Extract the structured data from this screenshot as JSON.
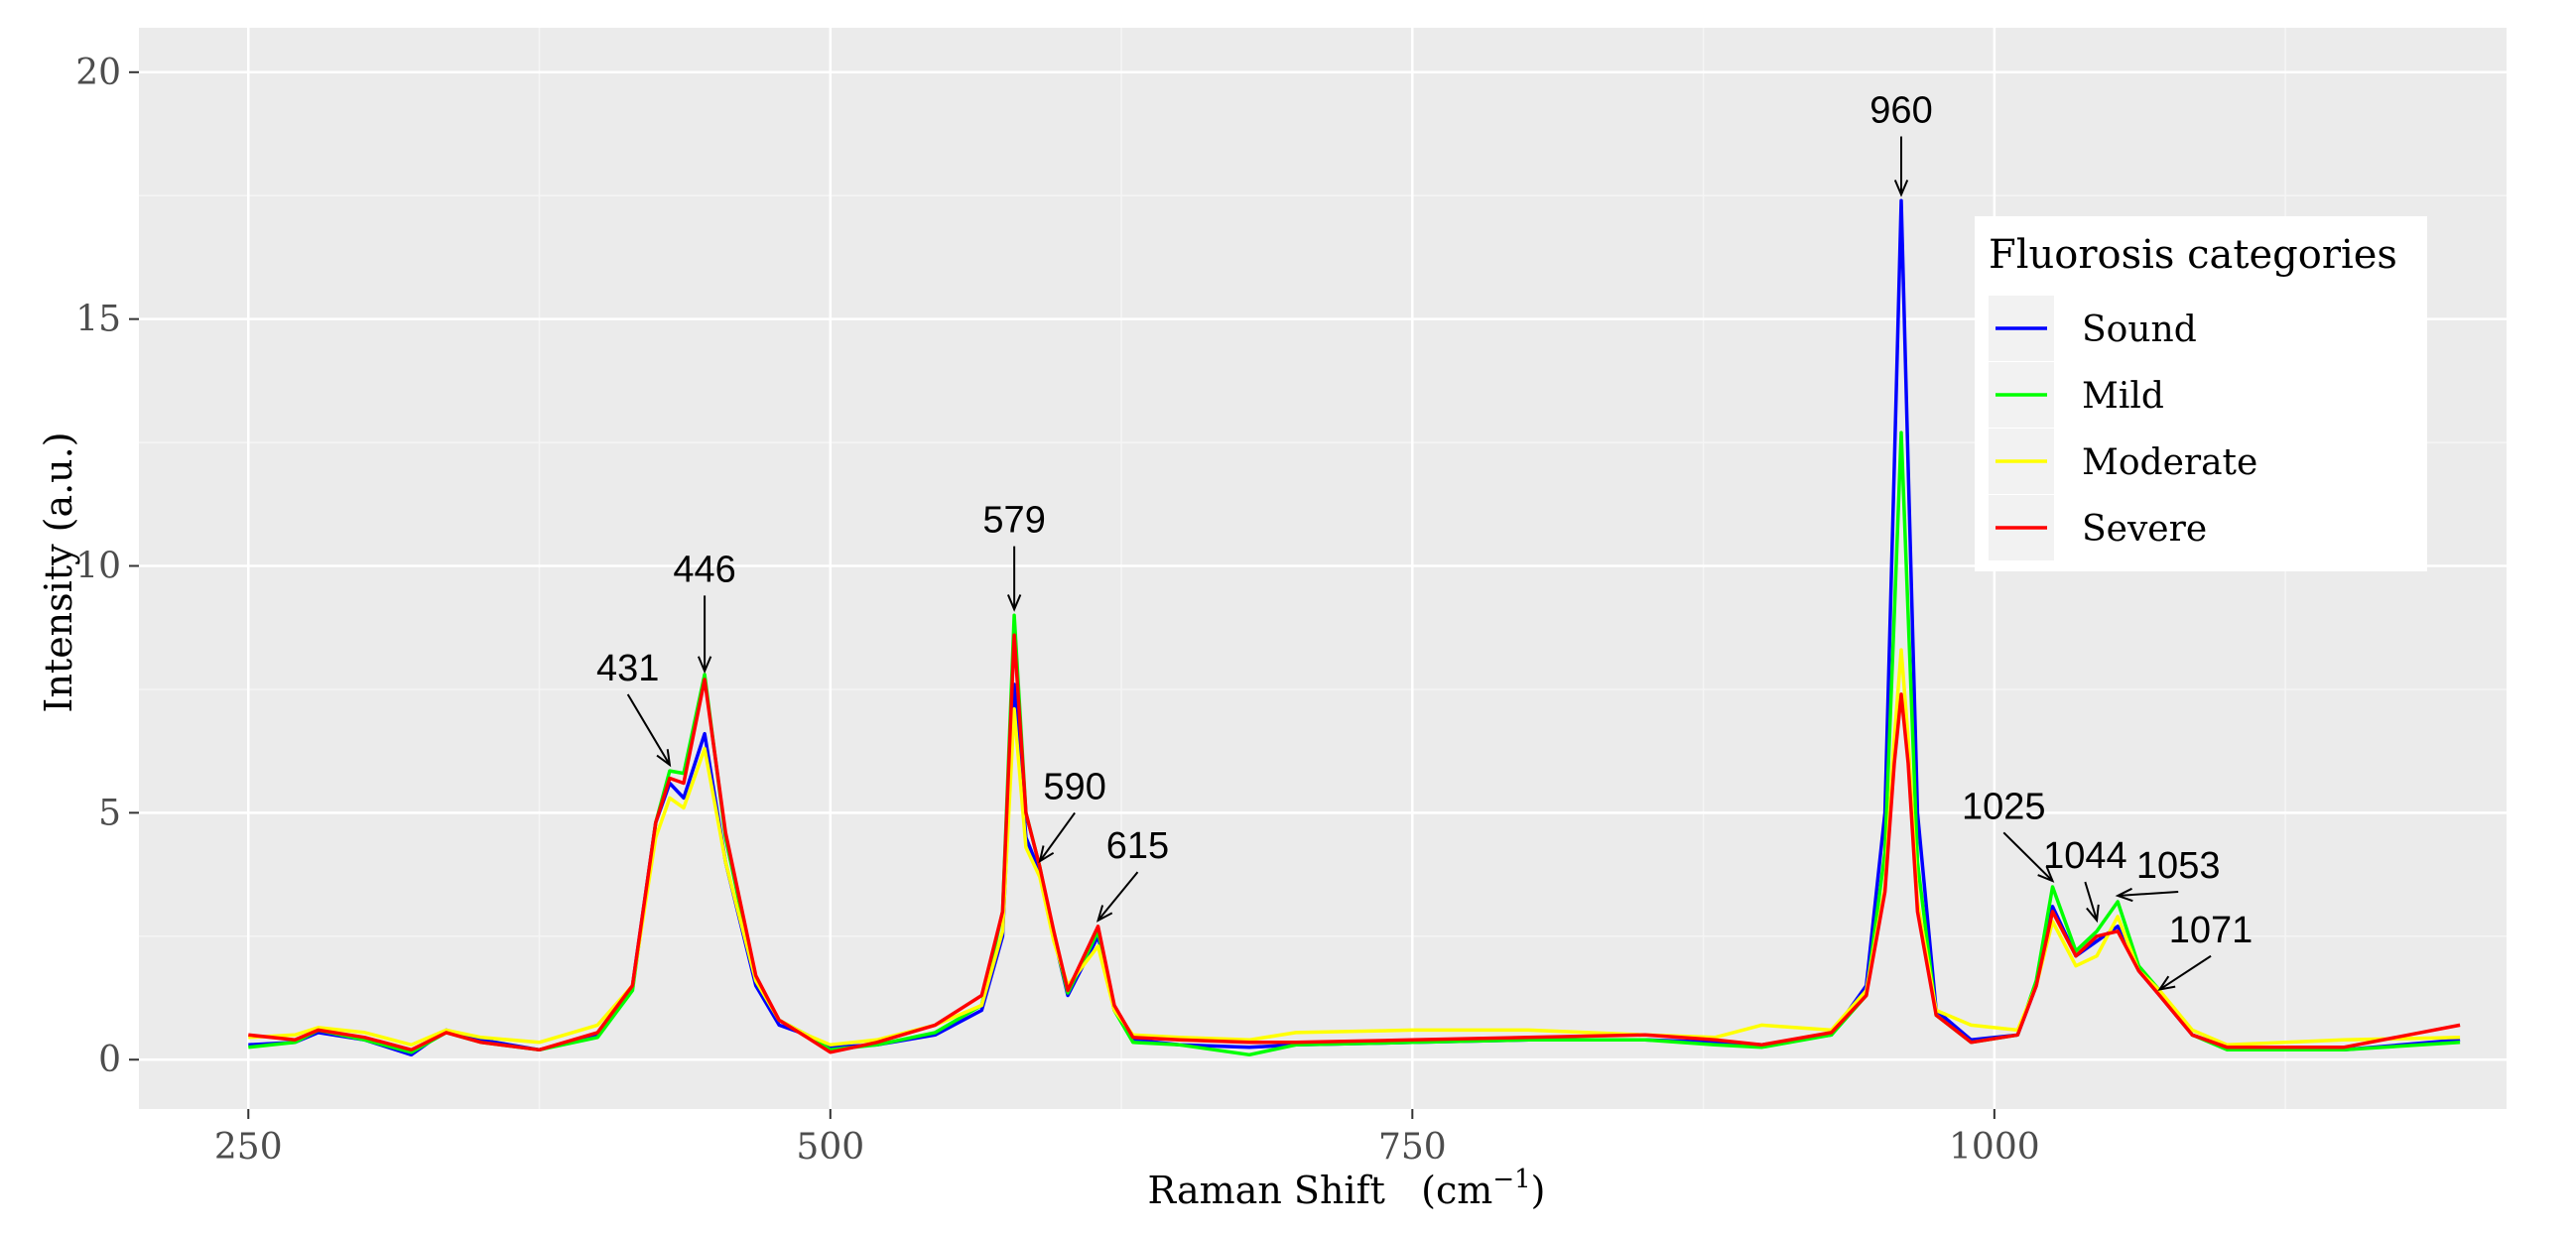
{
  "chart_data": {
    "type": "line",
    "title": "",
    "xlabel": "Raman Shift",
    "xlabel_unit": "cm",
    "xlabel_unit_exp": "−1",
    "ylabel": "Intensity (a.u.)",
    "xlim": [
      203,
      1220
    ],
    "ylim": [
      -1,
      20.9
    ],
    "x_ticks": [
      250,
      500,
      750,
      1000
    ],
    "y_ticks": [
      0,
      5,
      10,
      15,
      20
    ],
    "grid": true,
    "legend": {
      "title": "Fluorosis categories",
      "position": "right"
    },
    "series": [
      {
        "name": "Sound",
        "color": "#0000ff",
        "points": [
          [
            250,
            0.3
          ],
          [
            270,
            0.35
          ],
          [
            280,
            0.55
          ],
          [
            300,
            0.4
          ],
          [
            320,
            0.1
          ],
          [
            335,
            0.6
          ],
          [
            350,
            0.4
          ],
          [
            375,
            0.2
          ],
          [
            400,
            0.5
          ],
          [
            415,
            1.5
          ],
          [
            425,
            4.8
          ],
          [
            431,
            5.6
          ],
          [
            437,
            5.3
          ],
          [
            446,
            6.6
          ],
          [
            455,
            4.0
          ],
          [
            468,
            1.5
          ],
          [
            478,
            0.7
          ],
          [
            490,
            0.5
          ],
          [
            500,
            0.25
          ],
          [
            520,
            0.3
          ],
          [
            545,
            0.5
          ],
          [
            565,
            1.0
          ],
          [
            574,
            2.5
          ],
          [
            579,
            7.6
          ],
          [
            584,
            4.5
          ],
          [
            590,
            3.8
          ],
          [
            596,
            2.5
          ],
          [
            602,
            1.3
          ],
          [
            615,
            2.5
          ],
          [
            622,
            1.0
          ],
          [
            630,
            0.4
          ],
          [
            650,
            0.3
          ],
          [
            680,
            0.25
          ],
          [
            700,
            0.3
          ],
          [
            750,
            0.35
          ],
          [
            800,
            0.4
          ],
          [
            850,
            0.4
          ],
          [
            880,
            0.35
          ],
          [
            900,
            0.3
          ],
          [
            930,
            0.5
          ],
          [
            945,
            1.5
          ],
          [
            953,
            5.0
          ],
          [
            957,
            12.0
          ],
          [
            960,
            17.4
          ],
          [
            963,
            12.0
          ],
          [
            967,
            5.0
          ],
          [
            975,
            1.0
          ],
          [
            990,
            0.4
          ],
          [
            1010,
            0.5
          ],
          [
            1018,
            1.5
          ],
          [
            1025,
            3.1
          ],
          [
            1035,
            2.1
          ],
          [
            1044,
            2.4
          ],
          [
            1053,
            2.7
          ],
          [
            1062,
            1.8
          ],
          [
            1071,
            1.3
          ],
          [
            1085,
            0.5
          ],
          [
            1100,
            0.25
          ],
          [
            1150,
            0.2
          ],
          [
            1200,
            0.4
          ]
        ]
      },
      {
        "name": "Mild",
        "color": "#00ff00",
        "points": [
          [
            250,
            0.25
          ],
          [
            270,
            0.35
          ],
          [
            280,
            0.6
          ],
          [
            300,
            0.4
          ],
          [
            320,
            0.15
          ],
          [
            335,
            0.55
          ],
          [
            350,
            0.35
          ],
          [
            375,
            0.2
          ],
          [
            400,
            0.45
          ],
          [
            415,
            1.4
          ],
          [
            425,
            4.8
          ],
          [
            431,
            5.85
          ],
          [
            437,
            5.8
          ],
          [
            446,
            7.8
          ],
          [
            455,
            4.5
          ],
          [
            468,
            1.6
          ],
          [
            478,
            0.8
          ],
          [
            490,
            0.5
          ],
          [
            500,
            0.2
          ],
          [
            520,
            0.3
          ],
          [
            545,
            0.55
          ],
          [
            565,
            1.1
          ],
          [
            574,
            3.0
          ],
          [
            579,
            9.0
          ],
          [
            584,
            5.0
          ],
          [
            590,
            3.9
          ],
          [
            596,
            2.5
          ],
          [
            602,
            1.35
          ],
          [
            615,
            2.6
          ],
          [
            622,
            1.0
          ],
          [
            630,
            0.35
          ],
          [
            650,
            0.3
          ],
          [
            680,
            0.1
          ],
          [
            700,
            0.3
          ],
          [
            750,
            0.35
          ],
          [
            800,
            0.4
          ],
          [
            850,
            0.4
          ],
          [
            880,
            0.3
          ],
          [
            900,
            0.25
          ],
          [
            930,
            0.5
          ],
          [
            945,
            1.3
          ],
          [
            953,
            4.2
          ],
          [
            957,
            9.0
          ],
          [
            960,
            12.7
          ],
          [
            963,
            9.0
          ],
          [
            967,
            4.0
          ],
          [
            975,
            0.9
          ],
          [
            990,
            0.35
          ],
          [
            1010,
            0.5
          ],
          [
            1018,
            1.6
          ],
          [
            1025,
            3.5
          ],
          [
            1035,
            2.2
          ],
          [
            1044,
            2.6
          ],
          [
            1053,
            3.2
          ],
          [
            1062,
            1.9
          ],
          [
            1071,
            1.4
          ],
          [
            1085,
            0.5
          ],
          [
            1100,
            0.2
          ],
          [
            1150,
            0.2
          ],
          [
            1200,
            0.35
          ]
        ]
      },
      {
        "name": "Moderate",
        "color": "#ffff00",
        "points": [
          [
            250,
            0.45
          ],
          [
            270,
            0.5
          ],
          [
            280,
            0.65
          ],
          [
            300,
            0.55
          ],
          [
            320,
            0.3
          ],
          [
            335,
            0.6
          ],
          [
            350,
            0.45
          ],
          [
            375,
            0.35
          ],
          [
            400,
            0.7
          ],
          [
            415,
            1.5
          ],
          [
            425,
            4.5
          ],
          [
            431,
            5.3
          ],
          [
            437,
            5.1
          ],
          [
            446,
            6.3
          ],
          [
            455,
            4.0
          ],
          [
            468,
            1.6
          ],
          [
            478,
            0.8
          ],
          [
            490,
            0.5
          ],
          [
            500,
            0.3
          ],
          [
            520,
            0.4
          ],
          [
            545,
            0.7
          ],
          [
            565,
            1.1
          ],
          [
            574,
            2.6
          ],
          [
            579,
            7.1
          ],
          [
            584,
            4.3
          ],
          [
            590,
            3.7
          ],
          [
            596,
            2.4
          ],
          [
            602,
            1.5
          ],
          [
            615,
            2.3
          ],
          [
            622,
            1.0
          ],
          [
            630,
            0.5
          ],
          [
            650,
            0.45
          ],
          [
            680,
            0.4
          ],
          [
            700,
            0.55
          ],
          [
            750,
            0.6
          ],
          [
            800,
            0.6
          ],
          [
            850,
            0.5
          ],
          [
            880,
            0.45
          ],
          [
            900,
            0.7
          ],
          [
            930,
            0.6
          ],
          [
            945,
            1.4
          ],
          [
            953,
            3.5
          ],
          [
            957,
            6.5
          ],
          [
            960,
            8.3
          ],
          [
            963,
            6.5
          ],
          [
            967,
            3.2
          ],
          [
            975,
            1.0
          ],
          [
            990,
            0.7
          ],
          [
            1010,
            0.6
          ],
          [
            1018,
            1.5
          ],
          [
            1025,
            2.8
          ],
          [
            1035,
            1.9
          ],
          [
            1044,
            2.1
          ],
          [
            1053,
            2.9
          ],
          [
            1062,
            1.8
          ],
          [
            1071,
            1.4
          ],
          [
            1085,
            0.6
          ],
          [
            1100,
            0.3
          ],
          [
            1150,
            0.4
          ],
          [
            1200,
            0.45
          ]
        ]
      },
      {
        "name": "Severe",
        "color": "#ff0000",
        "points": [
          [
            250,
            0.5
          ],
          [
            270,
            0.4
          ],
          [
            280,
            0.6
          ],
          [
            300,
            0.45
          ],
          [
            320,
            0.2
          ],
          [
            335,
            0.55
          ],
          [
            350,
            0.35
          ],
          [
            375,
            0.2
          ],
          [
            400,
            0.55
          ],
          [
            415,
            1.5
          ],
          [
            425,
            4.8
          ],
          [
            431,
            5.7
          ],
          [
            437,
            5.6
          ],
          [
            446,
            7.7
          ],
          [
            455,
            4.6
          ],
          [
            468,
            1.7
          ],
          [
            478,
            0.8
          ],
          [
            490,
            0.45
          ],
          [
            500,
            0.15
          ],
          [
            520,
            0.35
          ],
          [
            545,
            0.7
          ],
          [
            565,
            1.3
          ],
          [
            574,
            3.0
          ],
          [
            579,
            8.6
          ],
          [
            584,
            5.0
          ],
          [
            590,
            3.9
          ],
          [
            596,
            2.6
          ],
          [
            602,
            1.4
          ],
          [
            615,
            2.7
          ],
          [
            622,
            1.1
          ],
          [
            630,
            0.45
          ],
          [
            650,
            0.4
          ],
          [
            680,
            0.35
          ],
          [
            700,
            0.35
          ],
          [
            750,
            0.4
          ],
          [
            800,
            0.45
          ],
          [
            850,
            0.5
          ],
          [
            880,
            0.4
          ],
          [
            900,
            0.3
          ],
          [
            930,
            0.55
          ],
          [
            945,
            1.3
          ],
          [
            953,
            3.4
          ],
          [
            957,
            6.0
          ],
          [
            960,
            7.4
          ],
          [
            963,
            6.0
          ],
          [
            967,
            3.0
          ],
          [
            975,
            0.9
          ],
          [
            990,
            0.35
          ],
          [
            1010,
            0.5
          ],
          [
            1018,
            1.5
          ],
          [
            1025,
            3.0
          ],
          [
            1035,
            2.1
          ],
          [
            1044,
            2.5
          ],
          [
            1053,
            2.6
          ],
          [
            1062,
            1.8
          ],
          [
            1071,
            1.3
          ],
          [
            1085,
            0.5
          ],
          [
            1100,
            0.25
          ],
          [
            1150,
            0.25
          ],
          [
            1200,
            0.7
          ]
        ]
      }
    ],
    "annotations": [
      {
        "label": "431",
        "x": 431,
        "y": 5.85,
        "text_x": 413,
        "text_y": 7.6
      },
      {
        "label": "446",
        "x": 446,
        "y": 7.75,
        "text_x": 446,
        "text_y": 9.6
      },
      {
        "label": "579",
        "x": 579,
        "y": 9.0,
        "text_x": 579,
        "text_y": 10.6
      },
      {
        "label": "590",
        "x": 590,
        "y": 3.9,
        "text_x": 605,
        "text_y": 5.2
      },
      {
        "label": "615",
        "x": 615,
        "y": 2.7,
        "text_x": 632,
        "text_y": 4.0
      },
      {
        "label": "960",
        "x": 960,
        "y": 17.4,
        "text_x": 960,
        "text_y": 18.9
      },
      {
        "label": "1025",
        "x": 1025,
        "y": 3.5,
        "text_x": 1004,
        "text_y": 4.8
      },
      {
        "label": "1044",
        "x": 1044,
        "y": 2.7,
        "text_x": 1039,
        "text_y": 3.8
      },
      {
        "label": "1053",
        "x": 1053,
        "y": 3.2,
        "text_x": 1079,
        "text_y": 3.6
      },
      {
        "label": "1071",
        "x": 1071,
        "y": 1.3,
        "text_x": 1093,
        "text_y": 2.3
      }
    ]
  }
}
